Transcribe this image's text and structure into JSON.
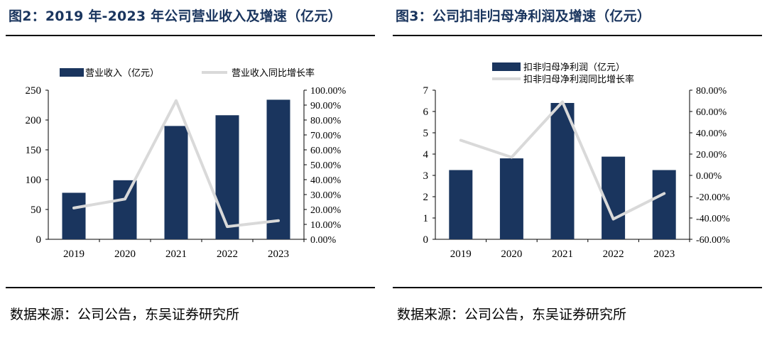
{
  "colors": {
    "bar": "#1a355e",
    "line": "#d9d9d9",
    "title": "#1a355e"
  },
  "charts": [
    {
      "title": "图2：2019 年-2023 年公司营业收入及增速（亿元）",
      "source": "数据来源：公司公告，东吴证券研究所",
      "chart_data": {
        "type": "bar",
        "categories": [
          "2019",
          "2020",
          "2021",
          "2022",
          "2023"
        ],
        "series": [
          {
            "name": "营业收入（亿元）",
            "type": "bar",
            "axis": "left",
            "values": [
              78,
              99,
              190,
              208,
              234
            ]
          },
          {
            "name": "营业收入同比增长率",
            "type": "line",
            "axis": "right",
            "values": [
              21.0,
              27.0,
              93.0,
              8.5,
              12.5
            ]
          }
        ],
        "ylim_left": [
          0,
          250
        ],
        "yticks_left": [
          "0",
          "50",
          "100",
          "150",
          "200",
          "250"
        ],
        "ylim_right": [
          0,
          100
        ],
        "yticks_right": [
          "0.00%",
          "10.00%",
          "20.00%",
          "30.00%",
          "40.00%",
          "50.00%",
          "60.00%",
          "70.00%",
          "80.00%",
          "90.00%",
          "100.00%"
        ],
        "legend": "top"
      }
    },
    {
      "title": "图3：公司扣非归母净利润及增速（亿元）",
      "source": "数据来源：公司公告，东吴证券研究所",
      "chart_data": {
        "type": "bar",
        "categories": [
          "2019",
          "2020",
          "2021",
          "2022",
          "2023"
        ],
        "series": [
          {
            "name": "扣非归母净利润（亿元）",
            "type": "bar",
            "axis": "left",
            "values": [
              3.25,
              3.8,
              6.4,
              3.88,
              3.25
            ]
          },
          {
            "name": "扣非归母净利润同比增长率",
            "type": "line",
            "axis": "right",
            "values": [
              33.0,
              17.0,
              69.0,
              -41.0,
              -17.0
            ]
          }
        ],
        "ylim_left": [
          0,
          7
        ],
        "yticks_left": [
          "0",
          "1",
          "2",
          "3",
          "4",
          "5",
          "6",
          "7"
        ],
        "ylim_right": [
          -60,
          80
        ],
        "yticks_right": [
          "-60.00%",
          "-40.00%",
          "-20.00%",
          "0.00%",
          "20.00%",
          "40.00%",
          "60.00%",
          "80.00%"
        ],
        "legend": "top"
      }
    }
  ]
}
